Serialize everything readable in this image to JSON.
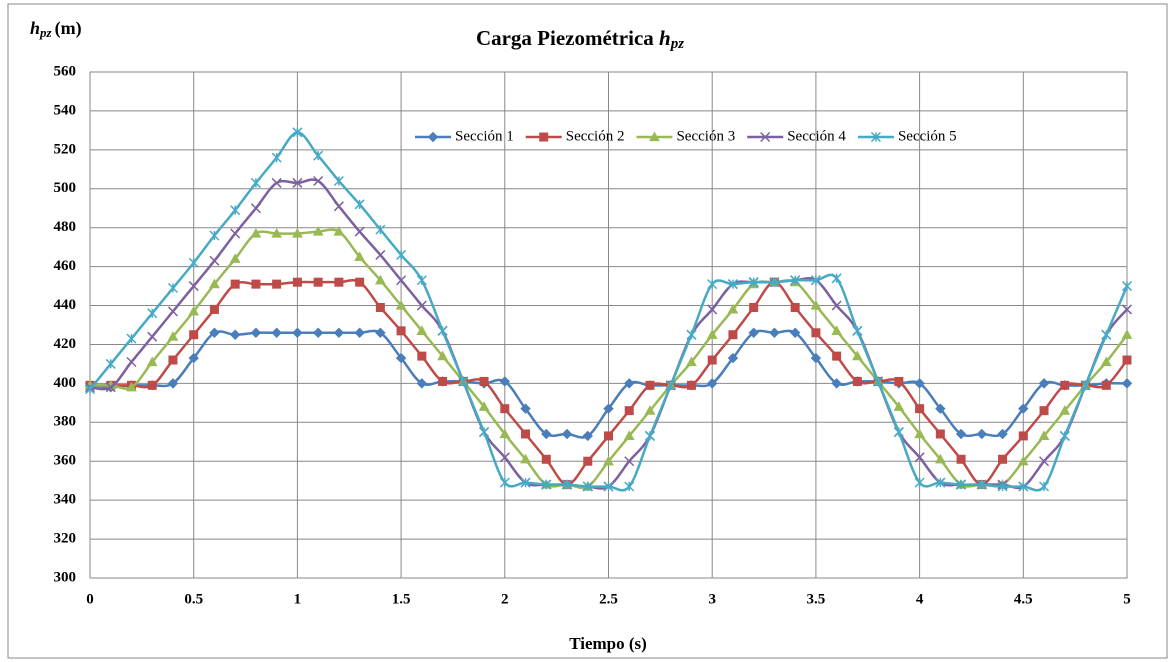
{
  "chart_data": {
    "type": "line",
    "title": "Carga Piezométrica",
    "title_symbol": "h",
    "title_subscript": "pz",
    "ylabel_symbol": "h",
    "ylabel_subscript": "pz",
    "ylabel_unit": "(m)",
    "xlabel": "Tiempo (s)",
    "x": [
      0,
      0.1,
      0.2,
      0.3,
      0.4,
      0.5,
      0.6,
      0.7,
      0.8,
      0.9,
      1,
      1.1,
      1.2,
      1.3,
      1.4,
      1.5,
      1.6,
      1.7,
      1.8,
      1.9,
      2,
      2.1,
      2.2,
      2.3,
      2.4,
      2.5,
      2.6,
      2.7,
      2.8,
      2.9,
      3,
      3.1,
      3.2,
      3.3,
      3.4,
      3.5,
      3.6,
      3.7,
      3.8,
      3.9,
      4,
      4.1,
      4.2,
      4.3,
      4.4,
      4.5,
      4.6,
      4.7,
      4.8,
      4.9,
      5
    ],
    "series": [
      {
        "name": "Sección 1",
        "color": "#4a7ebb",
        "marker": "diamond",
        "values": [
          399,
          398,
          399,
          399,
          400,
          413,
          426,
          425,
          426,
          426,
          426,
          426,
          426,
          426,
          426,
          413,
          400,
          401,
          401,
          400,
          401,
          387,
          374,
          374,
          373,
          387,
          400,
          399,
          399,
          399,
          400,
          413,
          426,
          426,
          426,
          413,
          400,
          401,
          401,
          400,
          400,
          387,
          374,
          374,
          374,
          387,
          400,
          399,
          399,
          400,
          400
        ]
      },
      {
        "name": "Sección 2",
        "color": "#be4b48",
        "marker": "square",
        "values": [
          399,
          399,
          399,
          399,
          412,
          425,
          438,
          451,
          451,
          451,
          452,
          452,
          452,
          452,
          439,
          427,
          414,
          401,
          401,
          401,
          387,
          374,
          361,
          348,
          360,
          373,
          386,
          399,
          399,
          399,
          412,
          425,
          439,
          452,
          439,
          426,
          414,
          401,
          401,
          401,
          387,
          374,
          361,
          348,
          361,
          373,
          386,
          399,
          399,
          399,
          412
        ]
      },
      {
        "name": "Sección 3",
        "color": "#98b954",
        "marker": "triangle",
        "values": [
          399,
          399,
          398,
          411,
          424,
          437,
          451,
          464,
          477,
          477,
          477,
          478,
          478,
          465,
          453,
          440,
          427,
          414,
          401,
          388,
          374,
          361,
          348,
          348,
          347,
          360,
          373,
          386,
          399,
          411,
          425,
          438,
          451,
          452,
          452,
          440,
          427,
          414,
          401,
          388,
          374,
          361,
          348,
          348,
          348,
          360,
          373,
          386,
          399,
          411,
          425
        ]
      },
      {
        "name": "Sección 4",
        "color": "#7d60a0",
        "marker": "x",
        "values": [
          398,
          398,
          411,
          424,
          437,
          450,
          463,
          477,
          490,
          503,
          503,
          504,
          491,
          478,
          466,
          453,
          440,
          427,
          401,
          375,
          362,
          349,
          348,
          348,
          347,
          347,
          360,
          373,
          399,
          425,
          438,
          451,
          452,
          452,
          453,
          453,
          440,
          427,
          401,
          375,
          362,
          349,
          348,
          348,
          348,
          347,
          360,
          373,
          399,
          425,
          438
        ]
      },
      {
        "name": "Sección 5",
        "color": "#46aac5",
        "marker": "star",
        "values": [
          397,
          410,
          423,
          436,
          449,
          462,
          476,
          489,
          503,
          516,
          529,
          517,
          504,
          492,
          479,
          466,
          453,
          427,
          401,
          375,
          349,
          349,
          348,
          348,
          347,
          347,
          347,
          373,
          399,
          425,
          451,
          451,
          452,
          452,
          453,
          453,
          454,
          427,
          401,
          375,
          349,
          349,
          348,
          348,
          347,
          347,
          347,
          373,
          399,
          425,
          450
        ]
      }
    ],
    "xlim": [
      0,
      5
    ],
    "xticks": [
      0,
      0.5,
      1,
      1.5,
      2,
      2.5,
      3,
      3.5,
      4,
      4.5,
      5
    ],
    "ylim": [
      300,
      560
    ],
    "yticks": [
      300,
      320,
      340,
      360,
      380,
      400,
      420,
      440,
      460,
      480,
      500,
      520,
      540,
      560
    ],
    "grid": true,
    "legend": "top"
  }
}
